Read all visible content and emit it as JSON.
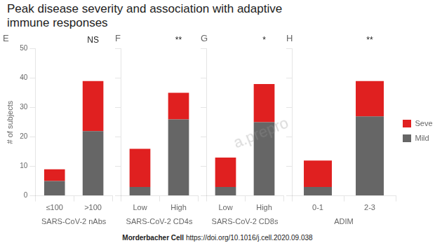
{
  "title": [
    "Peak disease severity and association with adaptive",
    "immune responses"
  ],
  "annotations": [
    "a.prepro",
    "Morderbacher Cell ",
    "https://doi.org/10.1016/j.cell.2020.09.038"
  ],
  "chart_data": [
    {
      "type": "bar",
      "title": "E",
      "annotations": [
        "NS"
      ],
      "xlabel": "SARS-CoV-2 nAbs",
      "ylabel": "# of subjects",
      "categories": [
        "≤100",
        ">100"
      ],
      "series": [
        {
          "name": "Mild",
          "color": "#666666",
          "values": [
            5,
            22
          ]
        },
        {
          "name": "Severe",
          "color": "#e02020",
          "values": [
            4,
            17
          ]
        }
      ],
      "stacked": true,
      "ylim": [
        0,
        50
      ],
      "yticks": [
        0,
        10,
        20,
        30,
        40,
        50
      ],
      "grid": false
    },
    {
      "type": "bar",
      "title": "F",
      "annotations": [
        "**"
      ],
      "xlabel": "SARS-CoV-2 CD4s",
      "categories": [
        "Low",
        "High"
      ],
      "series": [
        {
          "name": "Mild",
          "color": "#666666",
          "values": [
            3,
            26
          ]
        },
        {
          "name": "Severe",
          "color": "#e02020",
          "values": [
            13,
            9
          ]
        }
      ],
      "stacked": true,
      "ylim": [
        0,
        50
      ],
      "yticks": [
        0,
        10,
        20,
        30,
        40,
        50
      ],
      "grid": false,
      "tick_labels": "x"
    },
    {
      "type": "bar",
      "title": "G",
      "annotations": [
        "*"
      ],
      "xlabel": "SARS-CoV-2 CD8s",
      "categories": [
        "Low",
        "High"
      ],
      "series": [
        {
          "name": "Mild",
          "color": "#666666",
          "values": [
            3,
            25
          ]
        },
        {
          "name": "Severe",
          "color": "#e02020",
          "values": [
            10,
            13
          ]
        }
      ],
      "stacked": true,
      "ylim": [
        0,
        50
      ],
      "yticks": [
        0,
        10,
        20,
        30,
        40,
        50
      ],
      "grid": false,
      "tick_labels": "x"
    },
    {
      "type": "bar",
      "title": "H",
      "annotations": [
        "**"
      ],
      "xlabel": "ADIM",
      "categories": [
        "0-1",
        "2-3"
      ],
      "series": [
        {
          "name": "Mild",
          "color": "#666666",
          "values": [
            3,
            27
          ]
        },
        {
          "name": "Severe",
          "color": "#e02020",
          "values": [
            9,
            12
          ]
        }
      ],
      "stacked": true,
      "ylim": [
        0,
        50
      ],
      "yticks": [
        0,
        10,
        20,
        30,
        40,
        50
      ],
      "grid": false,
      "tick_labels": "x",
      "legend": "right"
    }
  ]
}
